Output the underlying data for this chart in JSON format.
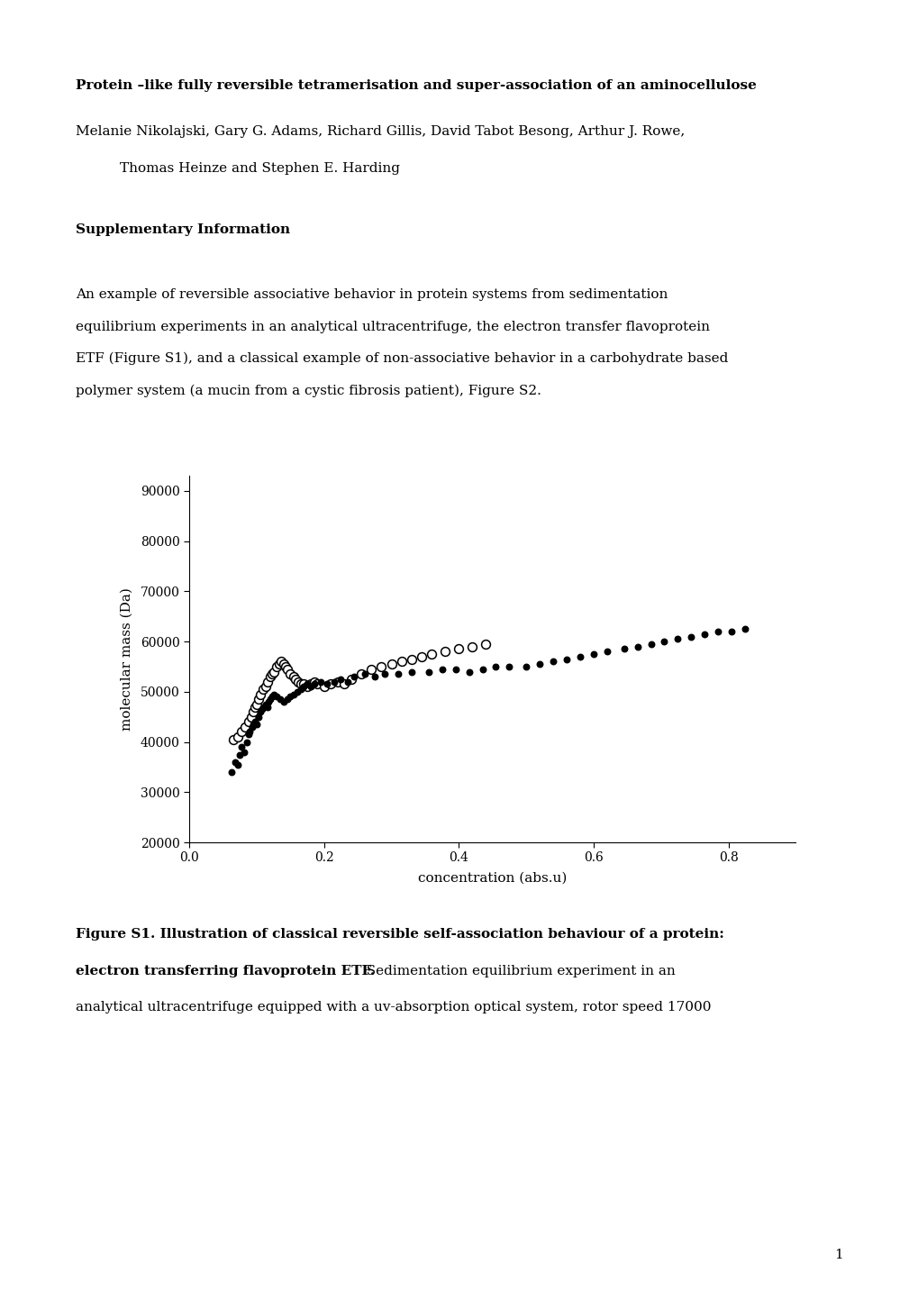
{
  "title_bold": "Protein –like fully reversible tetramerisation and super-association of an aminocellulose",
  "authors_line1": "Melanie Nikolajski, Gary G. Adams, Richard Gillis, David Tabot Besong, Arthur J. Rowe,",
  "authors_line2": "Thomas Heinze and Stephen E. Harding",
  "section_heading": "Supplementary Information",
  "body_lines": [
    "An example of reversible associative behavior in protein systems from sedimentation",
    "equilibrium experiments in an analytical ultracentrifuge, the electron transfer flavoprotein",
    "ETF (Figure S1), and a classical example of non-associative behavior in a carbohydrate based",
    "polymer system (a mucin from a cystic fibrosis patient), Figure S2."
  ],
  "xlabel": "concentration (abs.u)",
  "ylabel": "molecular mass (Da)",
  "xlim": [
    0.0,
    0.9
  ],
  "ylim": [
    20000,
    93000
  ],
  "yticks": [
    20000,
    30000,
    40000,
    50000,
    60000,
    70000,
    80000,
    90000
  ],
  "xticks": [
    0.0,
    0.2,
    0.4,
    0.6,
    0.8
  ],
  "page_number": "1",
  "filled_dots_x": [
    0.063,
    0.068,
    0.072,
    0.075,
    0.078,
    0.082,
    0.085,
    0.088,
    0.09,
    0.093,
    0.095,
    0.098,
    0.1,
    0.103,
    0.106,
    0.108,
    0.11,
    0.113,
    0.116,
    0.118,
    0.12,
    0.123,
    0.126,
    0.13,
    0.135,
    0.14,
    0.145,
    0.15,
    0.155,
    0.16,
    0.165,
    0.17,
    0.175,
    0.18,
    0.185,
    0.195,
    0.205,
    0.215,
    0.225,
    0.235,
    0.245,
    0.26,
    0.275,
    0.29,
    0.31,
    0.33,
    0.355,
    0.375,
    0.395,
    0.415,
    0.435,
    0.455,
    0.475,
    0.5,
    0.52,
    0.54,
    0.56,
    0.58,
    0.6,
    0.62,
    0.645,
    0.665,
    0.685,
    0.705,
    0.725,
    0.745,
    0.765,
    0.785,
    0.805,
    0.825
  ],
  "filled_dots_y": [
    34000,
    36000,
    35500,
    37500,
    39000,
    38000,
    40000,
    41500,
    42000,
    43000,
    43500,
    44000,
    43500,
    45000,
    46000,
    46500,
    47000,
    47500,
    47000,
    48000,
    48500,
    49000,
    49500,
    49000,
    48500,
    48000,
    48500,
    49000,
    49500,
    50000,
    50500,
    51000,
    51500,
    51000,
    51500,
    52000,
    51500,
    52000,
    52500,
    52000,
    53000,
    53500,
    53000,
    53500,
    53500,
    54000,
    54000,
    54500,
    54500,
    54000,
    54500,
    55000,
    55000,
    55000,
    55500,
    56000,
    56500,
    57000,
    57500,
    58000,
    58500,
    59000,
    59500,
    60000,
    60500,
    61000,
    61500,
    62000,
    62000,
    62500
  ],
  "open_dots_x": [
    0.065,
    0.072,
    0.078,
    0.083,
    0.088,
    0.092,
    0.095,
    0.098,
    0.1,
    0.103,
    0.106,
    0.11,
    0.113,
    0.116,
    0.12,
    0.123,
    0.126,
    0.13,
    0.133,
    0.136,
    0.14,
    0.143,
    0.146,
    0.15,
    0.155,
    0.158,
    0.162,
    0.165,
    0.17,
    0.175,
    0.18,
    0.185,
    0.19,
    0.2,
    0.21,
    0.22,
    0.23,
    0.24,
    0.255,
    0.27,
    0.285,
    0.3,
    0.315,
    0.33,
    0.345,
    0.36,
    0.38,
    0.4,
    0.42,
    0.44
  ],
  "open_dots_y": [
    40500,
    41000,
    42000,
    43000,
    44000,
    45000,
    46000,
    47000,
    47500,
    48500,
    49500,
    50500,
    51000,
    52000,
    53000,
    53500,
    54000,
    55000,
    55500,
    56000,
    55500,
    55000,
    54500,
    53500,
    53000,
    52500,
    52000,
    51500,
    51500,
    51000,
    51500,
    52000,
    51500,
    51000,
    51500,
    52000,
    51500,
    52500,
    53500,
    54500,
    55000,
    55500,
    56000,
    56500,
    57000,
    57500,
    58000,
    58500,
    59000,
    59500
  ]
}
